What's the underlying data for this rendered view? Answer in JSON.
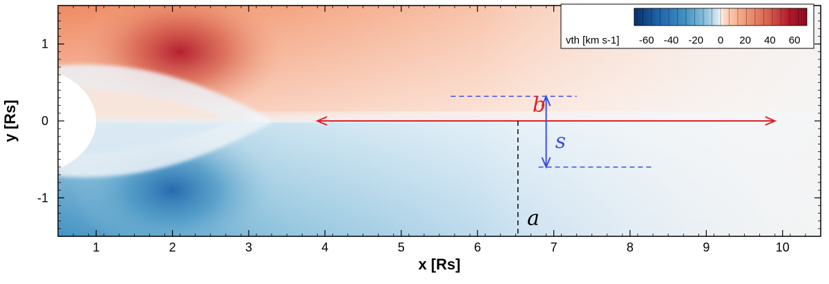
{
  "chart_data": {
    "type": "heatmap",
    "title": "",
    "xlabel": "x [Rs]",
    "ylabel": "y [Rs]",
    "xlim": [
      0.5,
      10.5
    ],
    "ylim": [
      -1.5,
      1.5
    ],
    "x_ticks": [
      "1",
      "2",
      "3",
      "4",
      "5",
      "6",
      "7",
      "8",
      "9",
      "10"
    ],
    "y_ticks": [
      "-1",
      "0",
      "1"
    ],
    "x_tick_values": [
      1,
      2,
      3,
      4,
      5,
      6,
      7,
      8,
      9,
      10
    ],
    "y_tick_values": [
      -1,
      0,
      1
    ],
    "grid": false,
    "colorbar": {
      "label": "vth [km s-1]",
      "range": [
        -70,
        70
      ],
      "tick_labels": [
        "-60",
        "-40",
        "-20",
        "0",
        "20",
        "40",
        "60"
      ],
      "tick_values": [
        -60,
        -40,
        -20,
        0,
        20,
        40,
        60
      ],
      "placement": "top-right",
      "colors": [
        "#08306b",
        "#2166ac",
        "#4393c3",
        "#92c5de",
        "#d1e5f0",
        "#f7f7f7",
        "#fddbc7",
        "#f4a582",
        "#d6604d",
        "#b2182b",
        "#67001f"
      ]
    },
    "annotations": [
      {
        "label": "b",
        "kind": "double-arrow",
        "from": [
          3.9,
          0.0
        ],
        "to": [
          9.9,
          0.0
        ],
        "color": "#e0202a"
      },
      {
        "label": "s",
        "kind": "double-arrow",
        "from": [
          6.9,
          0.32
        ],
        "to": [
          6.9,
          -0.6
        ],
        "color": "#3a4fe0"
      },
      {
        "label": "a",
        "kind": "dashed-line",
        "from": [
          6.53,
          0.0
        ],
        "to": [
          6.53,
          -1.5
        ],
        "color": "#000000"
      },
      {
        "label": "",
        "kind": "dashed-line",
        "from": [
          5.65,
          0.32
        ],
        "to": [
          7.3,
          0.32
        ],
        "color": "#3a4fe0"
      },
      {
        "label": "",
        "kind": "dashed-line",
        "from": [
          6.8,
          -0.6
        ],
        "to": [
          8.3,
          -0.6
        ],
        "color": "#3a4fe0"
      }
    ],
    "sun_disk": {
      "center": [
        0.0,
        0.0
      ],
      "radius": 1.0
    }
  }
}
